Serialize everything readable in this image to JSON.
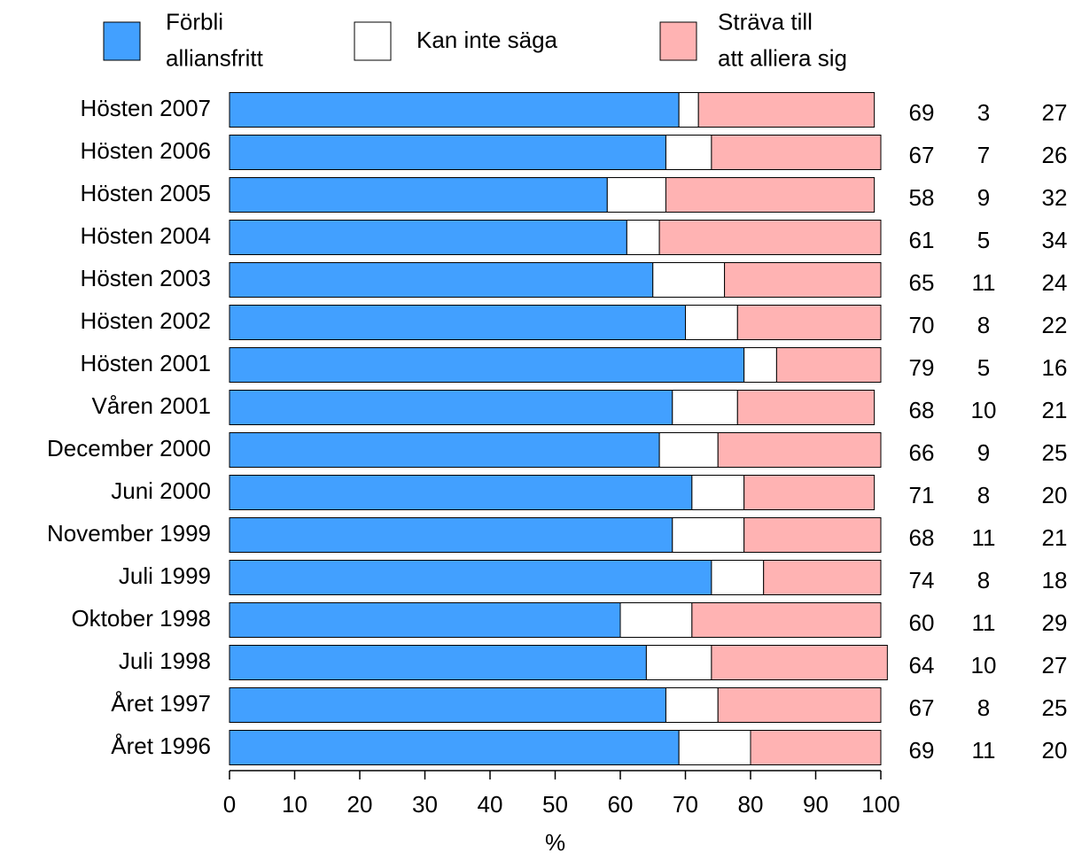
{
  "chart_data": {
    "type": "stacked_barh",
    "categories": [
      "Hösten 2007",
      "Hösten 2006",
      "Hösten 2005",
      "Hösten 2004",
      "Hösten 2003",
      "Hösten 2002",
      "Hösten 2001",
      "Våren 2001",
      "December 2000",
      "Juni 2000",
      "November 1999",
      "Juli 1999",
      "Oktober 1998",
      "Juli 1998",
      "Året 1997",
      "Året 1996"
    ],
    "series": [
      {
        "name": "Förbli\nalliansfritt",
        "color": "#42a0ff",
        "values": [
          69,
          67,
          58,
          61,
          65,
          70,
          79,
          68,
          66,
          71,
          68,
          74,
          60,
          64,
          67,
          69
        ]
      },
      {
        "name": "Kan inte säga",
        "color": "#ffffff",
        "values": [
          3,
          7,
          9,
          5,
          11,
          8,
          5,
          10,
          9,
          8,
          11,
          8,
          11,
          10,
          8,
          11
        ]
      },
      {
        "name": "Sträva till\natt alliera sig",
        "color": "#ffb3b3",
        "values": [
          27,
          26,
          32,
          34,
          24,
          22,
          16,
          21,
          25,
          20,
          21,
          18,
          29,
          27,
          25,
          20
        ]
      }
    ],
    "xlabel": "%",
    "xlim": [
      0,
      100
    ],
    "xticks": [
      0,
      10,
      20,
      30,
      40,
      50,
      60,
      70,
      80,
      90,
      100
    ]
  }
}
